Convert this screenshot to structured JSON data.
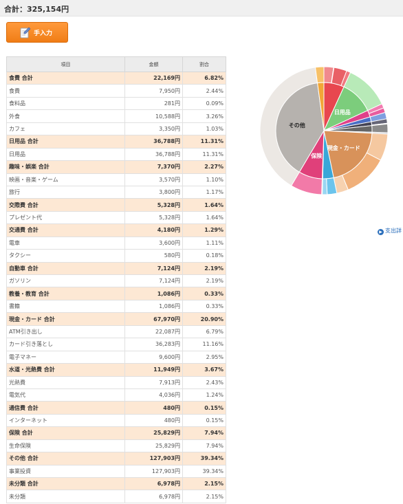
{
  "summary": {
    "total_text": "合計：325,154円"
  },
  "manual_button": {
    "label": "手入力",
    "icon": "pen-note-icon"
  },
  "table": {
    "headers": [
      "項目",
      "金額",
      "割合"
    ],
    "rows": [
      {
        "type": "cat",
        "item": "食費 合計",
        "amount": "22,169円",
        "pct": "6.82%"
      },
      {
        "type": "sub",
        "item": "食費",
        "amount": "7,950円",
        "pct": "2.44%"
      },
      {
        "type": "sub",
        "item": "食料品",
        "amount": "281円",
        "pct": "0.09%"
      },
      {
        "type": "sub",
        "item": "外食",
        "amount": "10,588円",
        "pct": "3.26%"
      },
      {
        "type": "sub",
        "item": "カフェ",
        "amount": "3,350円",
        "pct": "1.03%"
      },
      {
        "type": "cat",
        "item": "日用品 合計",
        "amount": "36,788円",
        "pct": "11.31%"
      },
      {
        "type": "sub",
        "item": "日用品",
        "amount": "36,788円",
        "pct": "11.31%"
      },
      {
        "type": "cat",
        "item": "趣味・娯楽 合計",
        "amount": "7,370円",
        "pct": "2.27%"
      },
      {
        "type": "sub",
        "item": "映画・音楽・ゲーム",
        "amount": "3,570円",
        "pct": "1.10%"
      },
      {
        "type": "sub",
        "item": "旅行",
        "amount": "3,800円",
        "pct": "1.17%"
      },
      {
        "type": "cat",
        "item": "交際費 合計",
        "amount": "5,328円",
        "pct": "1.64%"
      },
      {
        "type": "sub",
        "item": "プレゼント代",
        "amount": "5,328円",
        "pct": "1.64%"
      },
      {
        "type": "cat",
        "item": "交通費 合計",
        "amount": "4,180円",
        "pct": "1.29%"
      },
      {
        "type": "sub",
        "item": "電車",
        "amount": "3,600円",
        "pct": "1.11%"
      },
      {
        "type": "sub",
        "item": "タクシー",
        "amount": "580円",
        "pct": "0.18%"
      },
      {
        "type": "cat",
        "item": "自動車 合計",
        "amount": "7,124円",
        "pct": "2.19%"
      },
      {
        "type": "sub",
        "item": "ガソリン",
        "amount": "7,124円",
        "pct": "2.19%"
      },
      {
        "type": "cat",
        "item": "教養・教育 合計",
        "amount": "1,086円",
        "pct": "0.33%"
      },
      {
        "type": "sub",
        "item": "書籍",
        "amount": "1,086円",
        "pct": "0.33%"
      },
      {
        "type": "cat",
        "item": "現金・カード 合計",
        "amount": "67,970円",
        "pct": "20.90%"
      },
      {
        "type": "sub",
        "item": "ATM引き出し",
        "amount": "22,087円",
        "pct": "6.79%"
      },
      {
        "type": "sub",
        "item": "カード引き落とし",
        "amount": "36,283円",
        "pct": "11.16%"
      },
      {
        "type": "sub",
        "item": "電子マネー",
        "amount": "9,600円",
        "pct": "2.95%"
      },
      {
        "type": "cat",
        "item": "水道・光熱費 合計",
        "amount": "11,949円",
        "pct": "3.67%"
      },
      {
        "type": "sub",
        "item": "光熱費",
        "amount": "7,913円",
        "pct": "2.43%"
      },
      {
        "type": "sub",
        "item": "電気代",
        "amount": "4,036円",
        "pct": "1.24%"
      },
      {
        "type": "cat",
        "item": "通信費 合計",
        "amount": "480円",
        "pct": "0.15%"
      },
      {
        "type": "sub",
        "item": "インターネット",
        "amount": "480円",
        "pct": "0.15%"
      },
      {
        "type": "cat",
        "item": "保険 合計",
        "amount": "25,829円",
        "pct": "7.94%"
      },
      {
        "type": "sub",
        "item": "生命保険",
        "amount": "25,829円",
        "pct": "7.94%"
      },
      {
        "type": "cat",
        "item": "その他 合計",
        "amount": "127,903円",
        "pct": "39.34%"
      },
      {
        "type": "sub",
        "item": "事業投資",
        "amount": "127,903円",
        "pct": "39.34%"
      },
      {
        "type": "cat",
        "item": "未分類 合計",
        "amount": "6,978円",
        "pct": "2.15%"
      },
      {
        "type": "sub",
        "item": "未分類",
        "amount": "6,978円",
        "pct": "2.15%"
      }
    ]
  },
  "chart_data": {
    "type": "pie",
    "inner": [
      {
        "label": "",
        "value": 6.82,
        "color": "#e8474f"
      },
      {
        "label": "日用品",
        "value": 11.31,
        "color": "#7ccd7c"
      },
      {
        "label": "",
        "value": 2.27,
        "color": "#e0418a"
      },
      {
        "label": "",
        "value": 1.64,
        "color": "#4a6fc6"
      },
      {
        "label": "",
        "value": 1.29,
        "color": "#444455"
      },
      {
        "label": "",
        "value": 2.19,
        "color": "#666666"
      },
      {
        "label": "",
        "value": 0.33,
        "color": "#9aa0aa"
      },
      {
        "label": "現金・カード",
        "value": 20.9,
        "color": "#d8925a"
      },
      {
        "label": "",
        "value": 3.67,
        "color": "#3aa7d8"
      },
      {
        "label": "",
        "value": 0.15,
        "color": "#5b8fd8"
      },
      {
        "label": "保険",
        "value": 7.94,
        "color": "#e0407a"
      },
      {
        "label": "その他",
        "value": 39.34,
        "color": "#b6b2ae"
      },
      {
        "label": "",
        "value": 2.15,
        "color": "#f2a637"
      }
    ],
    "outer": [
      {
        "value": 2.44,
        "color": "#f08a8e"
      },
      {
        "value": 0.09,
        "color": "#f2a0a4"
      },
      {
        "value": 3.26,
        "color": "#e96066"
      },
      {
        "value": 1.03,
        "color": "#f07a80"
      },
      {
        "value": 11.31,
        "color": "#b8eab8"
      },
      {
        "value": 1.1,
        "color": "#f27bb0"
      },
      {
        "value": 1.17,
        "color": "#e85c9e"
      },
      {
        "value": 1.64,
        "color": "#7f9fe0"
      },
      {
        "value": 1.11,
        "color": "#666677"
      },
      {
        "value": 0.18,
        "color": "#888899"
      },
      {
        "value": 2.19,
        "color": "#8a8a8a"
      },
      {
        "value": 0.33,
        "color": "#b8bcc4"
      },
      {
        "value": 6.79,
        "color": "#f5c8a0"
      },
      {
        "value": 11.16,
        "color": "#f0b07a"
      },
      {
        "value": 2.95,
        "color": "#f7d2b0"
      },
      {
        "value": 2.43,
        "color": "#6cc4ec"
      },
      {
        "value": 1.24,
        "color": "#9ad6f2"
      },
      {
        "value": 0.15,
        "color": "#8fb3e8"
      },
      {
        "value": 7.94,
        "color": "#f27aa8"
      },
      {
        "value": 39.34,
        "color": "#ece8e4"
      },
      {
        "value": 2.15,
        "color": "#f7c168"
      }
    ]
  },
  "detail_link": {
    "label": "支出詳",
    "icon": "arrow-circle-icon"
  }
}
